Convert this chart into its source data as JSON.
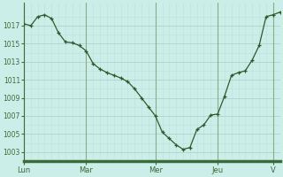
{
  "background_color": "#cceee8",
  "line_color": "#2d5a2d",
  "marker_color": "#2d5a2d",
  "grid_color_major": "#aad4cc",
  "grid_color_minor": "#c0e0da",
  "axis_color": "#3a6b3a",
  "tick_label_color": "#3a6b3a",
  "spine_color": "#3a6b3a",
  "vline_color": "#8aaa88",
  "ylim": [
    1002.0,
    1019.5
  ],
  "yticks": [
    1003,
    1005,
    1007,
    1009,
    1011,
    1013,
    1015,
    1017
  ],
  "x_day_labels": [
    "Lun",
    "Mar",
    "Mer",
    "Jeu",
    "V"
  ],
  "x_day_positions": [
    0,
    9,
    19,
    28,
    36
  ],
  "pressure_values": [
    1017.2,
    1017.0,
    1018.0,
    1018.2,
    1017.8,
    1016.2,
    1015.2,
    1015.1,
    1014.8,
    1014.2,
    1012.8,
    1012.2,
    1011.8,
    1011.5,
    1011.2,
    1010.8,
    1010.0,
    1009.0,
    1008.0,
    1007.0,
    1005.2,
    1004.5,
    1003.8,
    1003.3,
    1003.5,
    1005.5,
    1006.0,
    1007.1,
    1007.2,
    1009.2,
    1011.5,
    1011.8,
    1012.0,
    1013.2,
    1014.8,
    1018.0,
    1018.2,
    1018.5
  ],
  "vline_x_positions": [
    0,
    9,
    19,
    28,
    36
  ]
}
